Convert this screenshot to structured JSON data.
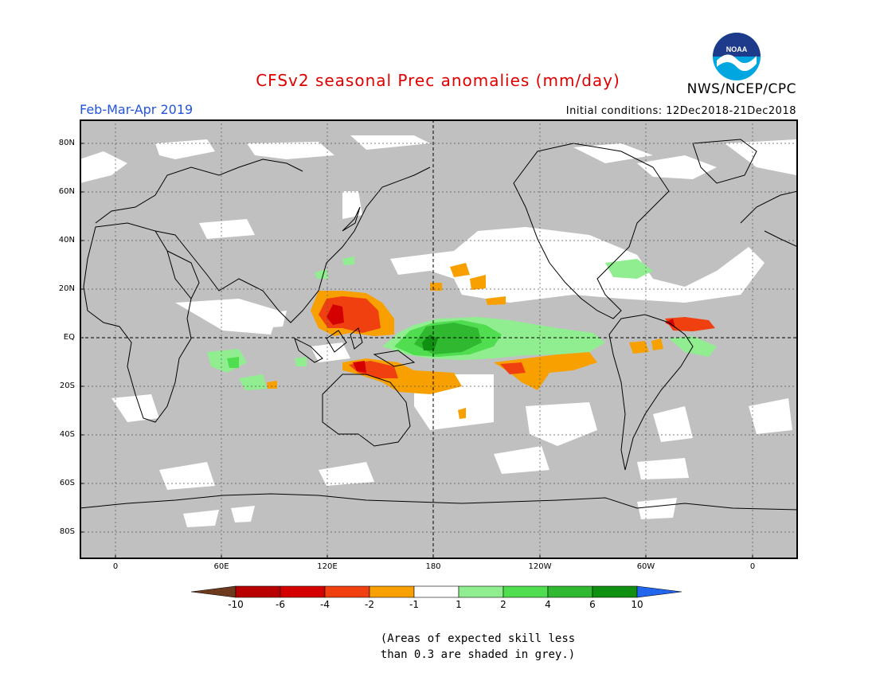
{
  "header": {
    "title": "CFSv2 seasonal Prec anomalies (mm/day)",
    "period": "Feb-Mar-Apr 2019",
    "initial_conditions": "Initial conditions: 12Dec2018-21Dec2018",
    "agency": "NWS/NCEP/CPC",
    "logo_text": "NOAA"
  },
  "map": {
    "lat_labels": [
      "80N",
      "60N",
      "40N",
      "20N",
      "EQ",
      "20S",
      "40S",
      "60S",
      "80S"
    ],
    "lon_labels": [
      "0",
      "60E",
      "120E",
      "180",
      "120W",
      "60W",
      "0"
    ],
    "grey_color": "#c0c0c0",
    "regions": [
      {
        "name": "western-pacific-dry",
        "category": "-4 to -2"
      },
      {
        "name": "central-pacific-wet",
        "category": "4 to 6"
      },
      {
        "name": "south-pacific-dry",
        "category": "-2 to -1"
      },
      {
        "name": "northern-south-america-dry",
        "category": "-4 to -2"
      },
      {
        "name": "southern-indian-ocean-wet",
        "category": "1 to 2"
      }
    ]
  },
  "legend": {
    "ticks": [
      "-10",
      "-6",
      "-4",
      "-2",
      "-1",
      "1",
      "2",
      "4",
      "6",
      "10"
    ],
    "colors": [
      "#6e3a1e",
      "#b80000",
      "#d40000",
      "#f04010",
      "#f8a000",
      "#ffffff",
      "#90ee90",
      "#50dd50",
      "#30b830",
      "#109010",
      "#2266ee"
    ]
  },
  "footnote": {
    "line1": "(Areas of expected skill less",
    "line2": "than 0.3 are shaded in grey.)"
  }
}
